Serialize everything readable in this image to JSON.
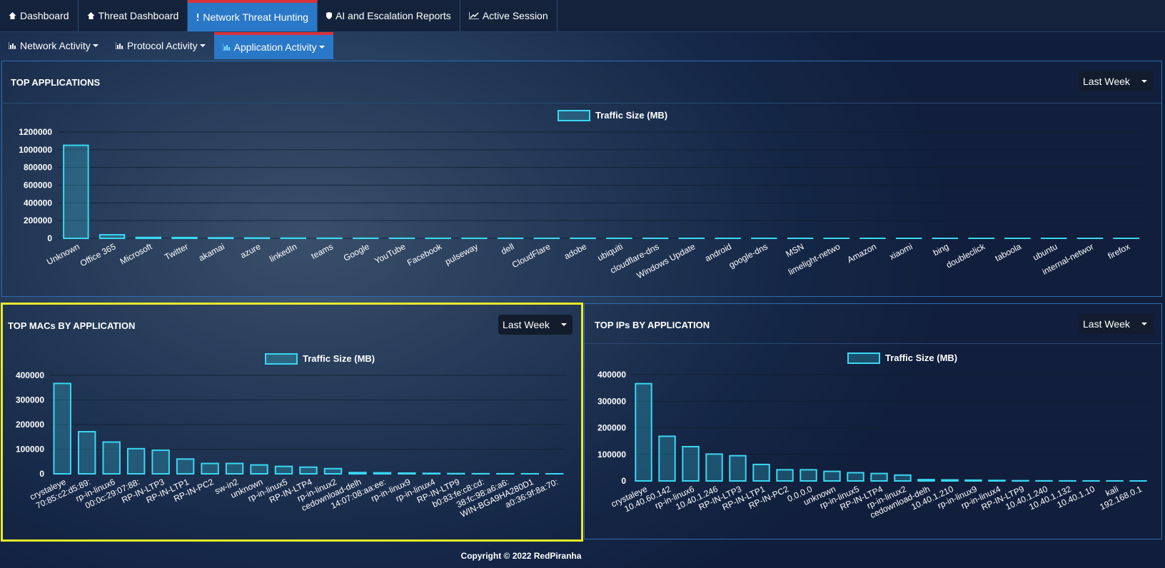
{
  "nav": [
    "Dashboard",
    "Threat Dashboard",
    "Network Threat Hunting",
    "AI and Escalation Reports",
    "Active Session"
  ],
  "subnav": [
    "Network Activity",
    "Protocol Activity",
    "Application Activity"
  ],
  "panels": [
    {
      "title": "TOP APPLICATIONS",
      "range": "Last Week",
      "chart": {
        "type": "bar",
        "categories": [
          "Unknown",
          "Office 365",
          "Microsoft",
          "Twitter",
          "akamai",
          "azure",
          "linkedIn",
          "teams",
          "Google",
          "YouTube",
          "Facebook",
          "pulseway",
          "dell",
          "CloudFlare",
          "adobe",
          "ubiquiti",
          "cloudflare-dns",
          "Windows Update",
          "android",
          "google-dns",
          "MSN",
          "limelight-netwo",
          "Amazon",
          "xiaomi",
          "bing",
          "doubleclick",
          "taboola",
          "ubuntu",
          "internal-networ",
          "firefox"
        ],
        "series": [
          {
            "name": "Traffic Size (MB)",
            "color": "#3ad7f2",
            "values": [
              1050000,
              40000,
              10000,
              9000,
              6000,
              4000,
              2000,
              1500,
              1200,
              1000,
              800,
              600,
              500,
              450,
              400,
              350,
              300,
              280,
              260,
              240,
              220,
              200,
              180,
              160,
              140,
              120,
              100,
              80,
              60,
              40
            ]
          }
        ],
        "ylim": [
          0,
          1200000
        ],
        "yticks": [
          0,
          200000,
          400000,
          600000,
          800000,
          1000000,
          1200000
        ],
        "grid": true
      }
    },
    {
      "title": "TOP MACs BY APPLICATION",
      "range": "Last Week",
      "chart": {
        "type": "bar",
        "categories": [
          "crystaleye",
          "70:85:c2:d5:89:",
          "rp-in-linux6",
          "00:0c:29:07:88:",
          "RP-IN-LTP3",
          "RP-IN-LTP1",
          "RP-IN-PC2",
          "sw-in2",
          "unknown",
          "rp-in-linux5",
          "RP-IN-LTP4",
          "rp-in-linux2",
          "cedownload-delh",
          "14:07:08:aa:ee:",
          "rp-in-linux9",
          "rp-in-linux4",
          "RP-IN-LTP9",
          "b0:83:fe:c8:cd:",
          "38:fc:98:a6:a6:",
          "WIN-BGA9HA280D1",
          "a0:36:9f:8a:70:"
        ],
        "series": [
          {
            "name": "Traffic Size (MB)",
            "color": "#3ad7f2",
            "values": [
              367000,
              171000,
              129000,
              102000,
              96000,
              60000,
              42000,
              42000,
              36000,
              30000,
              27000,
              21000,
              5000,
              4000,
              3000,
              2000,
              1000,
              500,
              300,
              200,
              100
            ]
          }
        ],
        "ylim": [
          0,
          400000
        ],
        "yticks": [
          0,
          100000,
          200000,
          300000,
          400000
        ],
        "grid": true
      }
    },
    {
      "title": "TOP IPs BY APPLICATION",
      "range": "Last Week",
      "chart": {
        "type": "bar",
        "categories": [
          "crystaleye",
          "10.40.60.142",
          "rp-in-linux6",
          "10.40.1.246",
          "RP-IN-LTP3",
          "RP-IN-LTP1",
          "RP-IN-PC2",
          "0.0.0.0",
          "unknown",
          "rp-in-linux5",
          "RP-IN-LTP4",
          "rp-in-linux2",
          "cedownload-delh",
          "10.40.1.210",
          "rp-in-linux9",
          "rp-in-linux4",
          "RP-IN-LTP9",
          "10.40.1.240",
          "10.40.1.132",
          "10.40.1.10",
          "kali",
          "192.168.0.1"
        ],
        "series": [
          {
            "name": "Traffic Size (MB)",
            "color": "#3ad7f2",
            "values": [
              366000,
              168000,
              129000,
              101000,
              95000,
              62000,
              42000,
              42000,
              36000,
              31000,
              28000,
              22000,
              5000,
              4000,
              3000,
              2000,
              1000,
              500,
              300,
              200,
              100,
              50
            ]
          }
        ],
        "ylim": [
          0,
          400000
        ],
        "yticks": [
          0,
          100000,
          200000,
          300000,
          400000
        ],
        "grid": true
      }
    }
  ],
  "footer": "Copyright © 2022 RedPiranha"
}
